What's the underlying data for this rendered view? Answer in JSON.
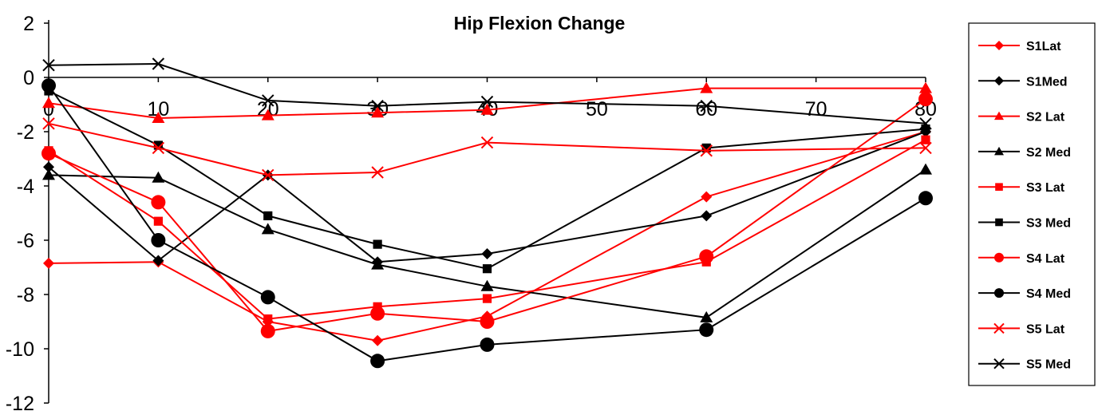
{
  "chart_data": {
    "type": "line",
    "title": "Hip Flexion Change",
    "xlabel": "",
    "ylabel": "",
    "xlim": [
      0,
      80
    ],
    "ylim": [
      -12,
      2
    ],
    "x_ticks": [
      0,
      10,
      20,
      30,
      40,
      50,
      60,
      70,
      80
    ],
    "y_ticks": [
      2,
      0,
      -2,
      -4,
      -6,
      -8,
      -10,
      -12
    ],
    "x": [
      0,
      10,
      20,
      30,
      40,
      60,
      80
    ],
    "legend_position": "right",
    "series": [
      {
        "name": "S1Lat",
        "color": "#ff0000",
        "marker": "diamond",
        "values": [
          -6.85,
          -6.8,
          -9.0,
          -9.7,
          -8.8,
          -4.4,
          -2.0
        ]
      },
      {
        "name": "S1Med",
        "color": "#000000",
        "marker": "diamond",
        "values": [
          -3.3,
          -6.75,
          -3.6,
          -6.8,
          -6.5,
          -5.1,
          -2.0
        ]
      },
      {
        "name": "S2 Lat",
        "color": "#ff0000",
        "marker": "triangle",
        "values": [
          -0.95,
          -1.5,
          -1.4,
          -1.3,
          -1.2,
          -0.4,
          -0.4
        ]
      },
      {
        "name": "S2 Med",
        "color": "#000000",
        "marker": "triangle",
        "values": [
          -3.6,
          -3.7,
          -5.6,
          -6.9,
          -7.7,
          -8.85,
          -3.4
        ]
      },
      {
        "name": "S3 Lat",
        "color": "#ff0000",
        "marker": "square",
        "values": [
          -2.7,
          -5.3,
          -8.9,
          -8.45,
          -8.15,
          -6.8,
          -2.3
        ]
      },
      {
        "name": "S3 Med",
        "color": "#000000",
        "marker": "square",
        "values": [
          -0.5,
          -2.5,
          -5.1,
          -6.15,
          -7.05,
          -2.6,
          -1.9
        ]
      },
      {
        "name": "S4 Lat",
        "color": "#ff0000",
        "marker": "circle",
        "values": [
          -2.8,
          -4.6,
          -9.35,
          -8.7,
          -9.0,
          -6.6,
          -0.8
        ]
      },
      {
        "name": "S4 Med",
        "color": "#000000",
        "marker": "circle",
        "values": [
          -0.3,
          -6.0,
          -8.1,
          -10.45,
          -9.85,
          -9.3,
          -4.45
        ]
      },
      {
        "name": "S5 Lat",
        "color": "#ff0000",
        "marker": "x",
        "values": [
          -1.7,
          -2.6,
          -3.6,
          -3.5,
          -2.4,
          -2.7,
          -2.6
        ]
      },
      {
        "name": "S5 Med",
        "color": "#000000",
        "marker": "x",
        "values": [
          0.45,
          0.5,
          -0.85,
          -1.05,
          -0.9,
          -1.05,
          -1.7
        ]
      }
    ]
  }
}
